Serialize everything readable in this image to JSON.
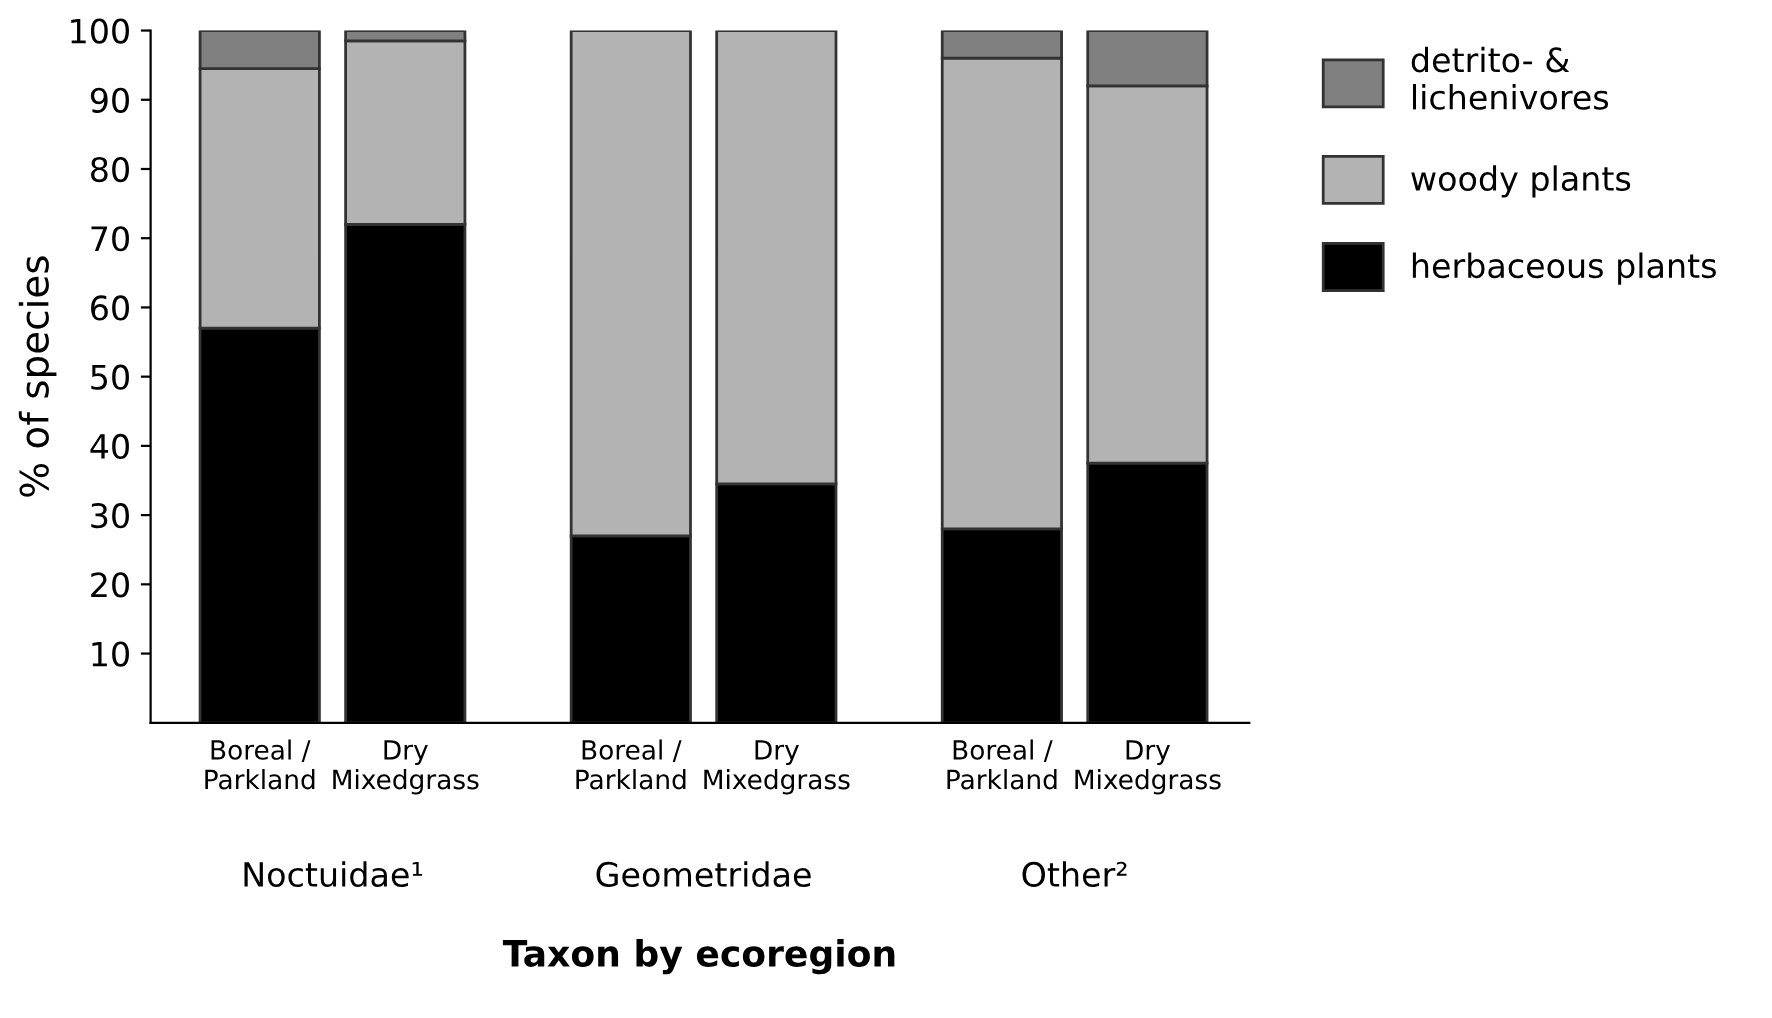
{
  "chart_data": {
    "type": "bar",
    "stacked": true,
    "xlabel": "Taxon by ecoregion",
    "ylabel": "% of species",
    "categories": [
      "Boreal /\nParkland",
      "Dry\nMixedgrass",
      "Boreal /\nParkland",
      "Dry\nMixedgrass",
      "Boreal /\nParkland",
      "Dry\nMixedgrass"
    ],
    "series": [
      {
        "name": "herbaceous plants",
        "color": "#000000",
        "values": [
          57,
          72,
          27,
          34.5,
          28,
          37.5
        ]
      },
      {
        "name": "woody plants",
        "color": "#b3b3b3",
        "values": [
          37.5,
          26.5,
          73,
          65.5,
          68,
          54.5
        ]
      },
      {
        "name": "detrito- &\nlichenivores",
        "color": "#808080",
        "values": [
          5.5,
          1.5,
          null,
          null,
          4,
          8
        ]
      }
    ],
    "ylim": [
      0,
      100
    ],
    "yticks": [
      10,
      20,
      30,
      40,
      50,
      60,
      70,
      80,
      90,
      100
    ],
    "annotations": [
      "Noctuidae¹",
      "Geometridae",
      "Other²"
    ],
    "legend": "right",
    "grid": false
  }
}
